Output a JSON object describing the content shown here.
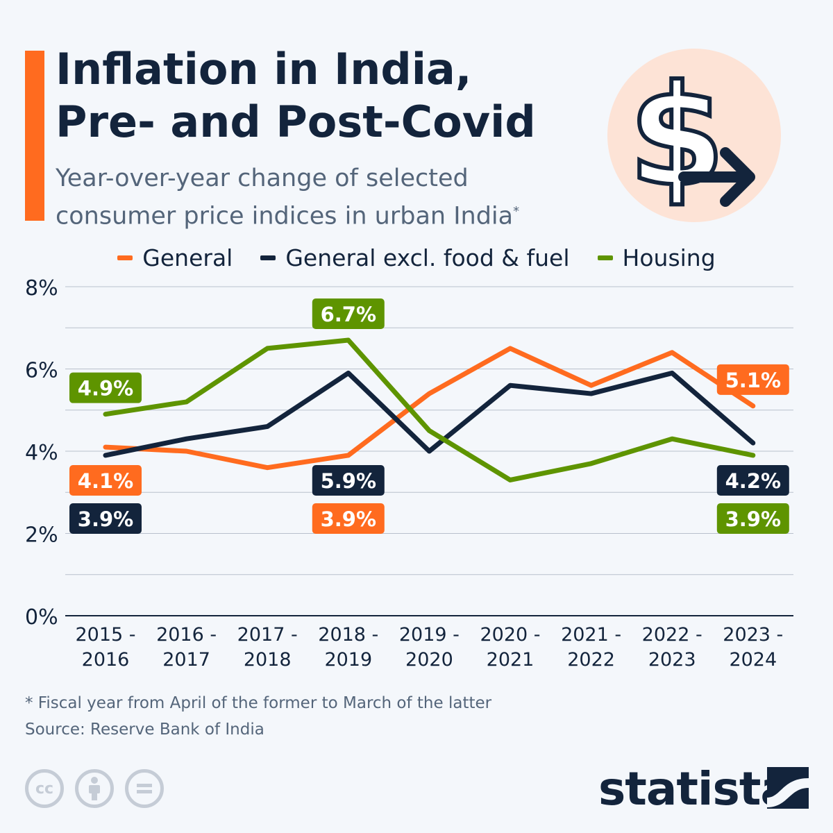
{
  "title_line1": "Inflation in India,",
  "title_line2": "Pre- and Post-Covid",
  "subtitle_line1": "Year-over-year change of selected",
  "subtitle_line2": "consumer price indices in urban India",
  "subtitle_mark": "*",
  "footnote": "* Fiscal year from April of the former to March of the latter",
  "source": "Source: Reserve Bank of India",
  "brand": "statista",
  "license_icons": [
    "cc-icon",
    "attribution-icon",
    "no-derivatives-icon"
  ],
  "license_text": [
    "cc",
    "",
    ""
  ],
  "chart_data": {
    "type": "line",
    "categories": [
      "2015-\n2016",
      "2016-\n2017",
      "2017-\n2018",
      "2018-\n2019",
      "2019-\n2020",
      "2020-\n2021",
      "2021-\n2022",
      "2022-\n2023",
      "2023-\n2024"
    ],
    "category_lines": [
      [
        "2015 -",
        "2016"
      ],
      [
        "2016 -",
        "2017"
      ],
      [
        "2017 -",
        "2018"
      ],
      [
        "2018 -",
        "2019"
      ],
      [
        "2019 -",
        "2020"
      ],
      [
        "2020 -",
        "2021"
      ],
      [
        "2021 -",
        "2022"
      ],
      [
        "2022 -",
        "2023"
      ],
      [
        "2023 -",
        "2024"
      ]
    ],
    "ylim": [
      0,
      8
    ],
    "yticks": [
      0,
      2,
      4,
      6,
      8
    ],
    "ytick_labels": [
      "0%",
      "2%",
      "4%",
      "6%",
      "8%"
    ],
    "grid": true,
    "legend_position": "top-center",
    "series": [
      {
        "name": "General",
        "color": "#ff6b1f",
        "values": [
          4.1,
          4.0,
          3.6,
          3.9,
          5.4,
          6.5,
          5.6,
          6.4,
          5.1
        ]
      },
      {
        "name": "General excl. food & fuel",
        "color": "#13243c",
        "values": [
          3.9,
          4.3,
          4.6,
          5.9,
          4.0,
          5.6,
          5.4,
          5.9,
          4.2
        ]
      },
      {
        "name": "Housing",
        "color": "#5e9400",
        "values": [
          4.9,
          5.2,
          6.5,
          6.7,
          4.5,
          3.3,
          3.7,
          4.3,
          3.9
        ]
      }
    ],
    "annotations": [
      {
        "series": 2,
        "index": 0,
        "text": "4.9%",
        "pos": "above"
      },
      {
        "series": 0,
        "index": 0,
        "text": "4.1%",
        "pos": "below1"
      },
      {
        "series": 1,
        "index": 0,
        "text": "3.9%",
        "pos": "below2"
      },
      {
        "series": 2,
        "index": 3,
        "text": "6.7%",
        "pos": "above"
      },
      {
        "series": 1,
        "index": 3,
        "text": "5.9%",
        "pos": "below1"
      },
      {
        "series": 0,
        "index": 3,
        "text": "3.9%",
        "pos": "below2"
      },
      {
        "series": 0,
        "index": 8,
        "text": "5.1%",
        "pos": "above"
      },
      {
        "series": 1,
        "index": 8,
        "text": "4.2%",
        "pos": "below1"
      },
      {
        "series": 2,
        "index": 8,
        "text": "3.9%",
        "pos": "below2"
      }
    ]
  }
}
